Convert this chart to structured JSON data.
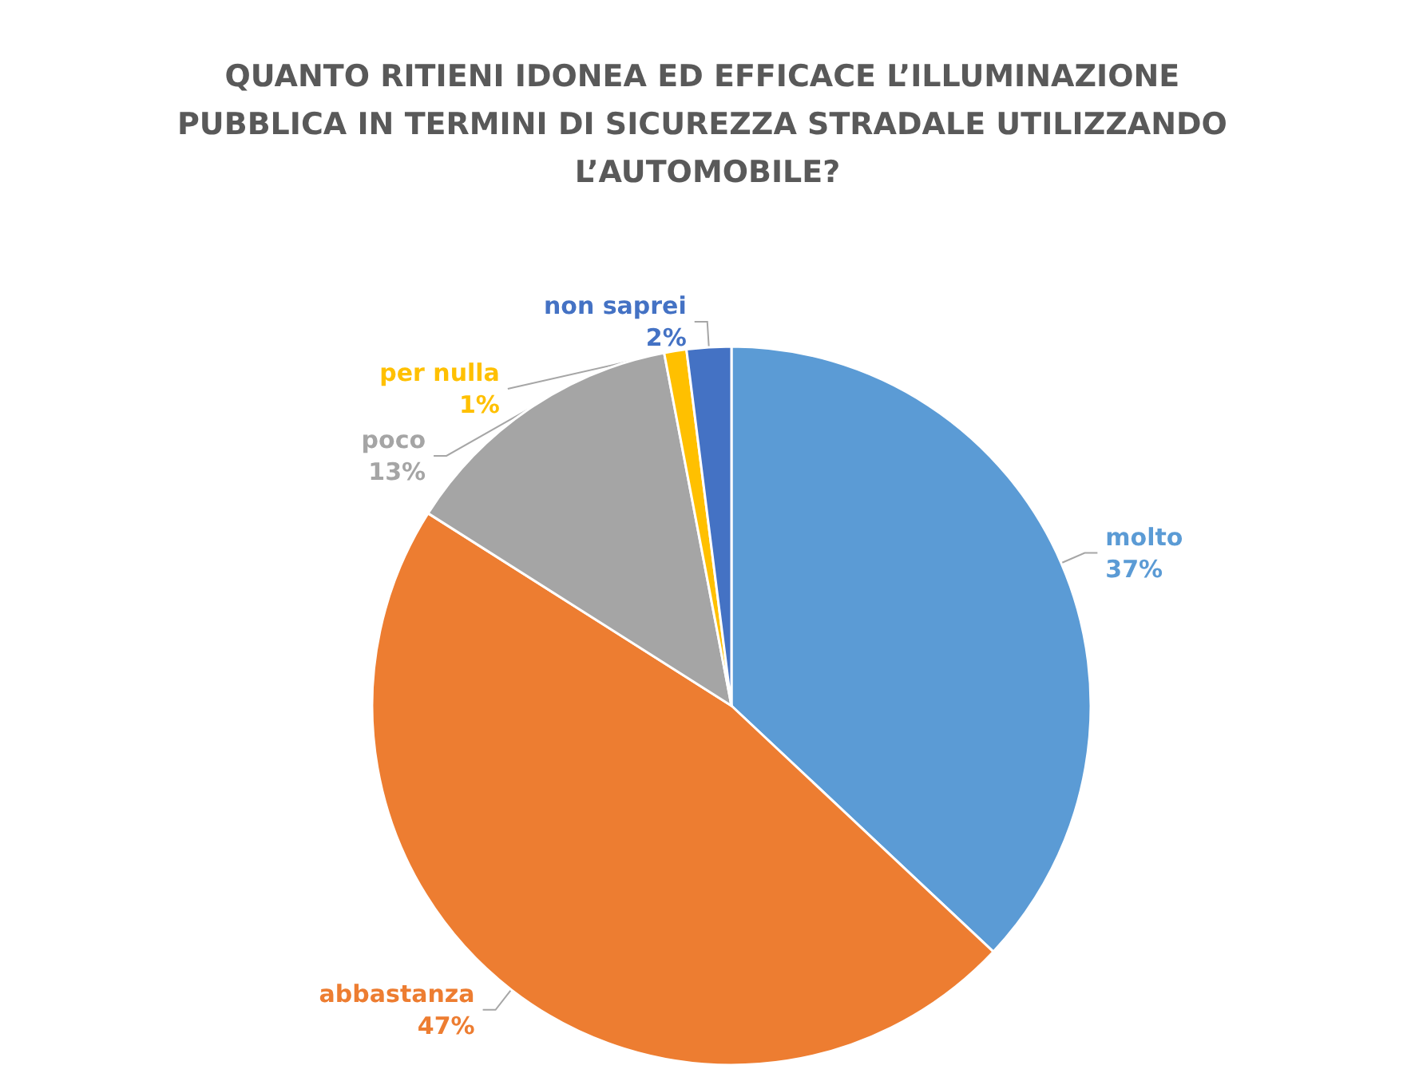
{
  "chart_data": {
    "type": "pie",
    "title": "QUANTO RITIENI IDONEA ED EFFICACE L’ILLUMINAZIONE PUBBLICA IN TERMINI DI SICUREZZA STRADALE UTILIZZANDO L’AUTOMOBILE?",
    "categories": [
      "molto",
      "abbastanza",
      "poco",
      "per nulla",
      "non saprei"
    ],
    "values": [
      37,
      47,
      13,
      1,
      2
    ],
    "value_labels": [
      "37%",
      "47%",
      "13%",
      "1%",
      "2%"
    ],
    "colors": [
      "#5b9bd5",
      "#ed7d31",
      "#a5a5a5",
      "#ffc000",
      "#4472c4"
    ],
    "legend": false
  }
}
